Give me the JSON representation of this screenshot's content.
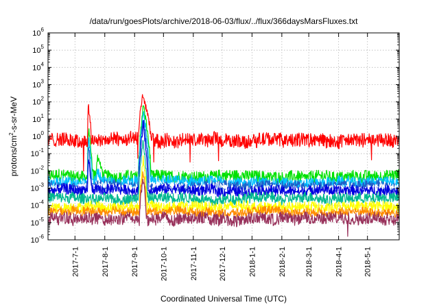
{
  "chart_data": {
    "type": "line",
    "title": "/data/run/goesPlots/archive/2018-06-03/flux/../flux/366daysMarsFluxes.txt",
    "xlabel": "Coordinated Universal Time (UTC)",
    "ylabel_main": "protons/cm",
    "ylabel_sup": "2",
    "ylabel_rest": "-s-sr-MeV",
    "yscale": "log",
    "ylim_exp": [
      -6,
      6
    ],
    "y_tick_base": "10",
    "y_tick_exponents": [
      "-6",
      "-5",
      "-4",
      "-3",
      "-2",
      "-1",
      "0",
      "1",
      "2",
      "3",
      "4",
      "5",
      "6"
    ],
    "xlim": [
      "2017-06-03",
      "2018-06-03"
    ],
    "x_ticks": [
      {
        "date": "2017-07-01",
        "label": "2017-7-1"
      },
      {
        "date": "2017-08-01",
        "label": "2017-8-1"
      },
      {
        "date": "2017-09-01",
        "label": "2017-9-1"
      },
      {
        "date": "2017-10-01",
        "label": "2017-10-1"
      },
      {
        "date": "2017-11-01",
        "label": "2017-11-1"
      },
      {
        "date": "2017-12-01",
        "label": "2017-12-1"
      },
      {
        "date": "2018-01-01",
        "label": "2018-1-1"
      },
      {
        "date": "2018-02-01",
        "label": "2018-2-1"
      },
      {
        "date": "2018-03-01",
        "label": "2018-3-1"
      },
      {
        "date": "2018-04-01",
        "label": "2018-4-1"
      },
      {
        "date": "2018-05-01",
        "label": "2018-5-1"
      }
    ],
    "grid": true,
    "legend": "none",
    "series": [
      {
        "color": "#00e000",
        "baseline": 0.005,
        "noise_decades": 0.35,
        "events": [
          {
            "start": "2017-07-14",
            "peak": "2017-07-15",
            "end": "2017-07-19",
            "peak_value": 3
          },
          {
            "start": "2017-07-23",
            "peak": "2017-07-24",
            "end": "2017-07-30",
            "peak_value": 0.06
          },
          {
            "start": "2017-09-05",
            "peak": "2017-09-10",
            "end": "2017-09-18",
            "peak_value": 60
          }
        ]
      },
      {
        "color": "#00c0ff",
        "baseline": 0.002,
        "noise_decades": 0.35,
        "events": [
          {
            "start": "2017-07-14",
            "peak": "2017-07-15",
            "end": "2017-07-19",
            "peak_value": 1
          },
          {
            "start": "2017-07-23",
            "peak": "2017-07-24",
            "end": "2017-07-29",
            "peak_value": 0.01
          },
          {
            "start": "2017-09-05",
            "peak": "2017-09-10",
            "end": "2017-09-17",
            "peak_value": 30
          }
        ]
      },
      {
        "color": "#1f5fc8",
        "baseline": 0.0013,
        "noise_decades": 0.3,
        "events": [
          {
            "start": "2017-07-14",
            "peak": "2017-07-15",
            "end": "2017-07-18",
            "peak_value": 0.3
          },
          {
            "start": "2017-09-05",
            "peak": "2017-09-10",
            "end": "2017-09-16",
            "peak_value": 10
          }
        ]
      },
      {
        "color": "#ffffff",
        "baseline": 0.0011,
        "noise_decades": 0.2,
        "events": [
          {
            "start": "2017-09-05",
            "peak": "2017-09-10",
            "end": "2017-09-15",
            "peak_value": 3
          }
        ]
      },
      {
        "color": "#0000e0",
        "baseline": 0.0007,
        "noise_decades": 0.3,
        "events": [
          {
            "start": "2017-07-14",
            "peak": "2017-07-15",
            "end": "2017-07-18",
            "peak_value": 0.05
          },
          {
            "start": "2017-09-05",
            "peak": "2017-09-10",
            "end": "2017-09-15",
            "peak_value": 5
          }
        ]
      },
      {
        "color": "#00b890",
        "baseline": 0.00025,
        "noise_decades": 0.3,
        "events": [
          {
            "start": "2017-09-05",
            "peak": "2017-09-10",
            "end": "2017-09-14",
            "peak_value": 0.5
          }
        ]
      },
      {
        "color": "#ffff00",
        "baseline": 8e-05,
        "noise_decades": 0.3,
        "events": [
          {
            "start": "2017-09-06",
            "peak": "2017-09-10",
            "end": "2017-09-14",
            "peak_value": 0.05
          }
        ]
      },
      {
        "color": "#ff8c00",
        "baseline": 4e-05,
        "noise_decades": 0.25,
        "events": [
          {
            "start": "2017-09-06",
            "peak": "2017-09-10",
            "end": "2017-09-13",
            "peak_value": 0.01
          }
        ]
      },
      {
        "color": "#98305a",
        "baseline": 1.8e-05,
        "noise_decades": 0.35,
        "events": [
          {
            "start": "2017-09-06",
            "peak": "2017-09-10",
            "end": "2017-09-13",
            "peak_value": 0.003
          }
        ]
      },
      {
        "color": "#ff0000",
        "baseline": 0.6,
        "noise_decades": 0.4,
        "events": [
          {
            "start": "2017-07-14",
            "peak": "2017-07-15",
            "end": "2017-07-18",
            "peak_value": 60
          },
          {
            "start": "2017-09-05",
            "peak": "2017-09-09",
            "end": "2017-09-18",
            "peak_value": 200
          }
        ]
      }
    ]
  }
}
